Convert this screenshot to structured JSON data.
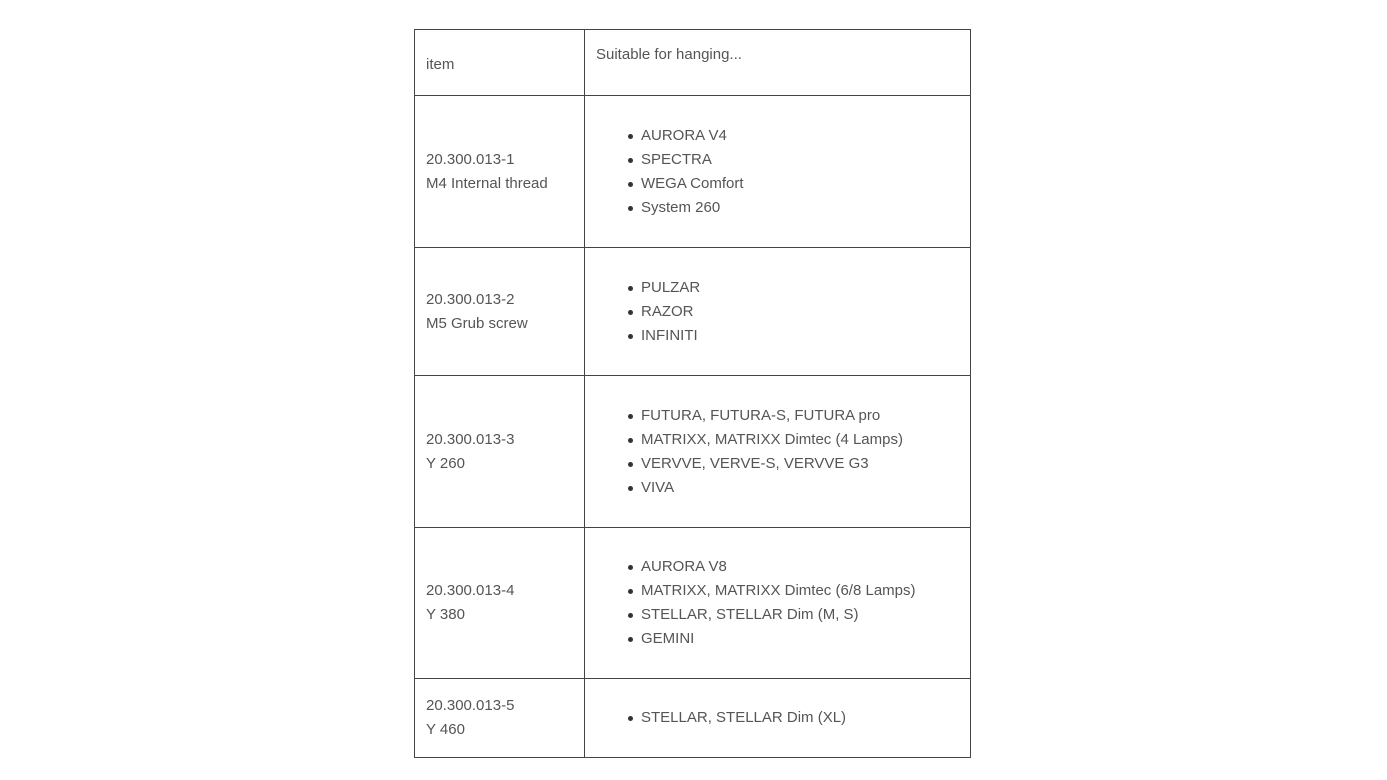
{
  "table": {
    "headers": [
      "item",
      "Suitable for hanging..."
    ],
    "rows": [
      {
        "code": "20.300.013-1",
        "desc": "M4 Internal thread",
        "items": [
          "AURORA V4",
          "SPECTRA",
          "WEGA Comfort",
          "System 260"
        ]
      },
      {
        "code": "20.300.013-2",
        "desc": "M5 Grub screw",
        "items": [
          "PULZAR",
          "RAZOR",
          "INFINITI"
        ]
      },
      {
        "code": "20.300.013-3",
        "desc": "Y 260",
        "items": [
          "FUTURA, FUTURA-S, FUTURA pro",
          "MATRIXX, MATRIXX Dimtec (4 Lamps)",
          "VERVVE, VERVE-S, VERVVE G3",
          "VIVA"
        ]
      },
      {
        "code": "20.300.013-4",
        "desc": "Y 380",
        "items": [
          "AURORA V8",
          "MATRIXX, MATRIXX Dimtec (6/8 Lamps)",
          "STELLAR, STELLAR Dim (M, S)",
          "GEMINI"
        ]
      },
      {
        "code": "20.300.013-5",
        "desc": "Y 460",
        "items": [
          "STELLAR, STELLAR Dim (XL)"
        ]
      }
    ]
  }
}
